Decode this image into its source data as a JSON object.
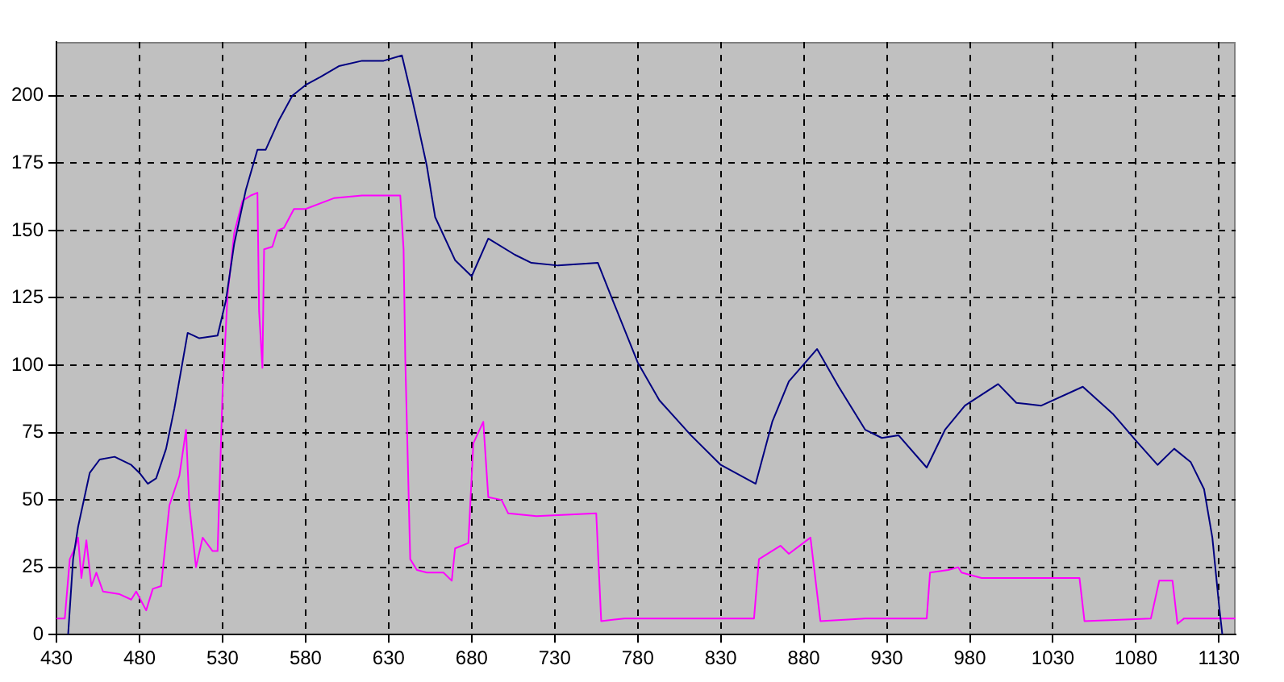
{
  "chart_data": {
    "type": "line",
    "xlim": [
      430,
      1140
    ],
    "xticks": [
      430,
      480,
      530,
      580,
      630,
      680,
      730,
      780,
      830,
      880,
      930,
      980,
      1030,
      1080,
      1130
    ],
    "ylim": [
      0,
      220
    ],
    "yticks": [
      0,
      25,
      50,
      75,
      100,
      125,
      150,
      175,
      200
    ],
    "grid": true,
    "legend": false,
    "marker": "none",
    "line_style": "solid",
    "series": [
      {
        "color": "#000080",
        "x": [
          437,
          440,
          443,
          450,
          456,
          465,
          475,
          480,
          485,
          490,
          496,
          501,
          509,
          516,
          527,
          532,
          537,
          544,
          551,
          556,
          564,
          572,
          580,
          589,
          600,
          614,
          627,
          638,
          643,
          647,
          653,
          658,
          670,
          680,
          690,
          706,
          716,
          732,
          756,
          765,
          780,
          793,
          812,
          830,
          851,
          861,
          871,
          888,
          901,
          917,
          927,
          937,
          954,
          965,
          977,
          997,
          1008,
          1023,
          1048,
          1066,
          1080,
          1093,
          1103,
          1113,
          1121,
          1126,
          1130,
          1132
        ],
        "values": [
          0,
          28,
          40,
          60,
          65,
          66,
          63,
          60,
          56,
          58,
          69,
          84,
          112,
          110,
          111,
          124,
          145,
          165,
          180,
          180,
          191,
          200,
          204,
          207,
          211,
          213,
          213,
          215,
          202,
          191,
          174,
          155,
          139,
          133,
          147,
          141,
          138,
          137,
          138,
          124,
          101,
          87,
          74,
          63,
          56,
          79,
          94,
          106,
          92,
          76,
          73,
          74,
          62,
          76,
          85,
          93,
          86,
          85,
          92,
          82,
          72,
          63,
          69,
          64,
          54,
          36,
          11,
          0
        ]
      },
      {
        "color": "#ff00ff",
        "x": [
          430,
          435,
          438,
          441,
          443,
          445,
          448,
          451,
          454,
          458,
          468,
          475,
          478,
          484,
          488,
          493,
          498,
          504,
          508,
          510,
          514,
          518,
          524,
          527,
          530,
          533,
          537,
          542,
          547,
          551,
          552,
          554,
          555,
          560,
          563,
          567,
          573,
          580,
          597,
          614,
          637,
          639,
          640,
          643,
          647,
          653,
          663,
          668,
          670,
          678,
          681,
          687,
          690,
          698,
          702,
          719,
          755,
          758,
          772,
          850,
          853,
          866,
          871,
          884,
          890,
          917,
          954,
          956,
          967,
          973,
          975,
          987,
          1046,
          1049,
          1089,
          1094,
          1102,
          1105,
          1109,
          1140
        ],
        "values": [
          6,
          6,
          28,
          32,
          36,
          21,
          35,
          18,
          23,
          16,
          15,
          13,
          16,
          9,
          17,
          18,
          48,
          59,
          76,
          48,
          25,
          36,
          31,
          31,
          90,
          126,
          149,
          161,
          163,
          164,
          120,
          99,
          143,
          144,
          150,
          151,
          158,
          158,
          162,
          163,
          163,
          143,
          103,
          28,
          24,
          23,
          23,
          20,
          32,
          34,
          71,
          79,
          51,
          50,
          45,
          44,
          45,
          5,
          6,
          6,
          28,
          33,
          30,
          36,
          5,
          6,
          6,
          23,
          24,
          25,
          23,
          21,
          21,
          5,
          6,
          20,
          20,
          4,
          6,
          6
        ]
      }
    ]
  }
}
